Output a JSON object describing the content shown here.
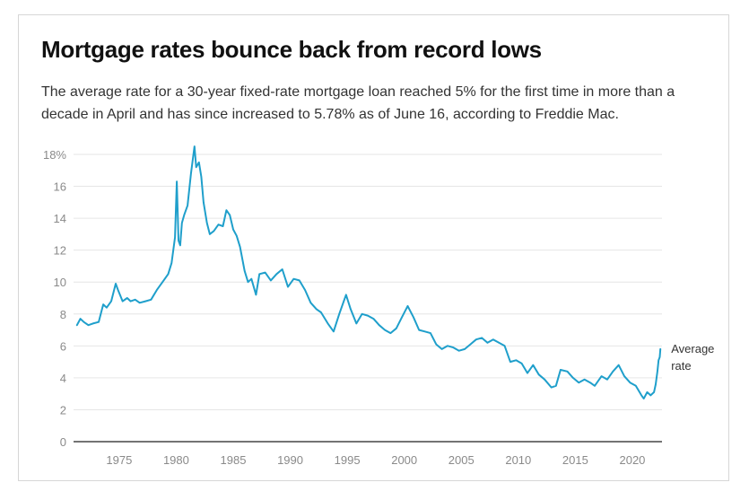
{
  "colors": {
    "line": "#1f9fcb",
    "grid": "#e6e6e6",
    "axis": "#222222",
    "tick_text": "#8a8a8a"
  },
  "chart_data": {
    "type": "line",
    "title": "Mortgage rates bounce back from record lows",
    "subtitle": "The average rate for a 30-year fixed-rate mortgage loan reached 5% for the first time in more than a decade in April and has since increased to 5.78% as of June 16, according to Freddie Mac.",
    "xlabel": "",
    "ylabel": "",
    "xlim": [
      1971,
      2022.6
    ],
    "ylim": [
      0,
      18.5
    ],
    "grid": true,
    "x_ticks": [
      1975,
      1980,
      1985,
      1990,
      1995,
      2000,
      2005,
      2010,
      2015,
      2020
    ],
    "x_tick_labels": [
      "1975",
      "1980",
      "1985",
      "1990",
      "1995",
      "2000",
      "2005",
      "2010",
      "2015",
      "2020"
    ],
    "y_ticks": [
      0,
      2,
      4,
      6,
      8,
      10,
      12,
      14,
      16,
      18
    ],
    "y_tick_labels": [
      "0",
      "2",
      "4",
      "6",
      "8",
      "10",
      "12",
      "14",
      "16",
      "18%"
    ],
    "series": [
      {
        "name": "Average rate",
        "label_line1": "Average",
        "label_line2": "rate",
        "x": [
          1971.3,
          1971.6,
          1971.9,
          1972.3,
          1972.7,
          1973.2,
          1973.6,
          1973.9,
          1974.3,
          1974.7,
          1974.9,
          1975.3,
          1975.7,
          1976.0,
          1976.4,
          1976.8,
          1977.3,
          1977.8,
          1978.3,
          1978.8,
          1979.3,
          1979.6,
          1979.9,
          1980.05,
          1980.2,
          1980.35,
          1980.5,
          1980.7,
          1981.0,
          1981.3,
          1981.6,
          1981.75,
          1982.0,
          1982.2,
          1982.4,
          1982.7,
          1982.95,
          1983.3,
          1983.7,
          1984.1,
          1984.4,
          1984.7,
          1985.0,
          1985.3,
          1985.6,
          1986.0,
          1986.3,
          1986.6,
          1987.0,
          1987.3,
          1987.8,
          1988.3,
          1988.8,
          1989.3,
          1989.8,
          1990.3,
          1990.8,
          1991.3,
          1991.8,
          1992.3,
          1992.7,
          1993.3,
          1993.8,
          1994.3,
          1994.9,
          1995.3,
          1995.8,
          1996.3,
          1996.8,
          1997.3,
          1997.8,
          1998.3,
          1998.8,
          1999.3,
          1999.8,
          2000.3,
          2000.8,
          2001.3,
          2001.8,
          2002.3,
          2002.8,
          2003.3,
          2003.8,
          2004.3,
          2004.8,
          2005.3,
          2005.8,
          2006.3,
          2006.8,
          2007.3,
          2007.8,
          2008.3,
          2008.8,
          2009.3,
          2009.8,
          2010.3,
          2010.8,
          2011.3,
          2011.8,
          2012.3,
          2012.9,
          2013.3,
          2013.7,
          2014.3,
          2014.8,
          2015.3,
          2015.8,
          2016.3,
          2016.7,
          2017.3,
          2017.8,
          2018.3,
          2018.8,
          2019.3,
          2019.8,
          2020.3,
          2020.8,
          2021.0,
          2021.3,
          2021.6,
          2021.9,
          2022.05,
          2022.2,
          2022.3,
          2022.4,
          2022.46
        ],
        "values": [
          7.3,
          7.7,
          7.5,
          7.3,
          7.4,
          7.5,
          8.6,
          8.4,
          8.8,
          9.9,
          9.5,
          8.8,
          9.0,
          8.8,
          8.9,
          8.7,
          8.8,
          8.9,
          9.5,
          10.0,
          10.5,
          11.2,
          12.8,
          16.3,
          12.6,
          12.3,
          13.7,
          14.2,
          14.8,
          16.8,
          18.5,
          17.2,
          17.5,
          16.6,
          15.0,
          13.7,
          13.0,
          13.2,
          13.6,
          13.5,
          14.5,
          14.2,
          13.3,
          12.9,
          12.2,
          10.7,
          10.0,
          10.2,
          9.2,
          10.5,
          10.6,
          10.1,
          10.5,
          10.8,
          9.7,
          10.2,
          10.1,
          9.5,
          8.7,
          8.3,
          8.1,
          7.4,
          6.9,
          8.0,
          9.2,
          8.3,
          7.4,
          8.0,
          7.9,
          7.7,
          7.3,
          7.0,
          6.8,
          7.1,
          7.8,
          8.5,
          7.8,
          7.0,
          6.9,
          6.8,
          6.1,
          5.8,
          6.0,
          5.9,
          5.7,
          5.8,
          6.1,
          6.4,
          6.5,
          6.2,
          6.4,
          6.2,
          6.0,
          5.0,
          5.1,
          4.9,
          4.3,
          4.8,
          4.2,
          3.9,
          3.4,
          3.5,
          4.5,
          4.4,
          4.0,
          3.7,
          3.9,
          3.7,
          3.5,
          4.1,
          3.9,
          4.4,
          4.8,
          4.1,
          3.7,
          3.5,
          2.9,
          2.7,
          3.1,
          2.9,
          3.1,
          3.6,
          4.4,
          5.1,
          5.3,
          5.8
        ]
      }
    ]
  }
}
